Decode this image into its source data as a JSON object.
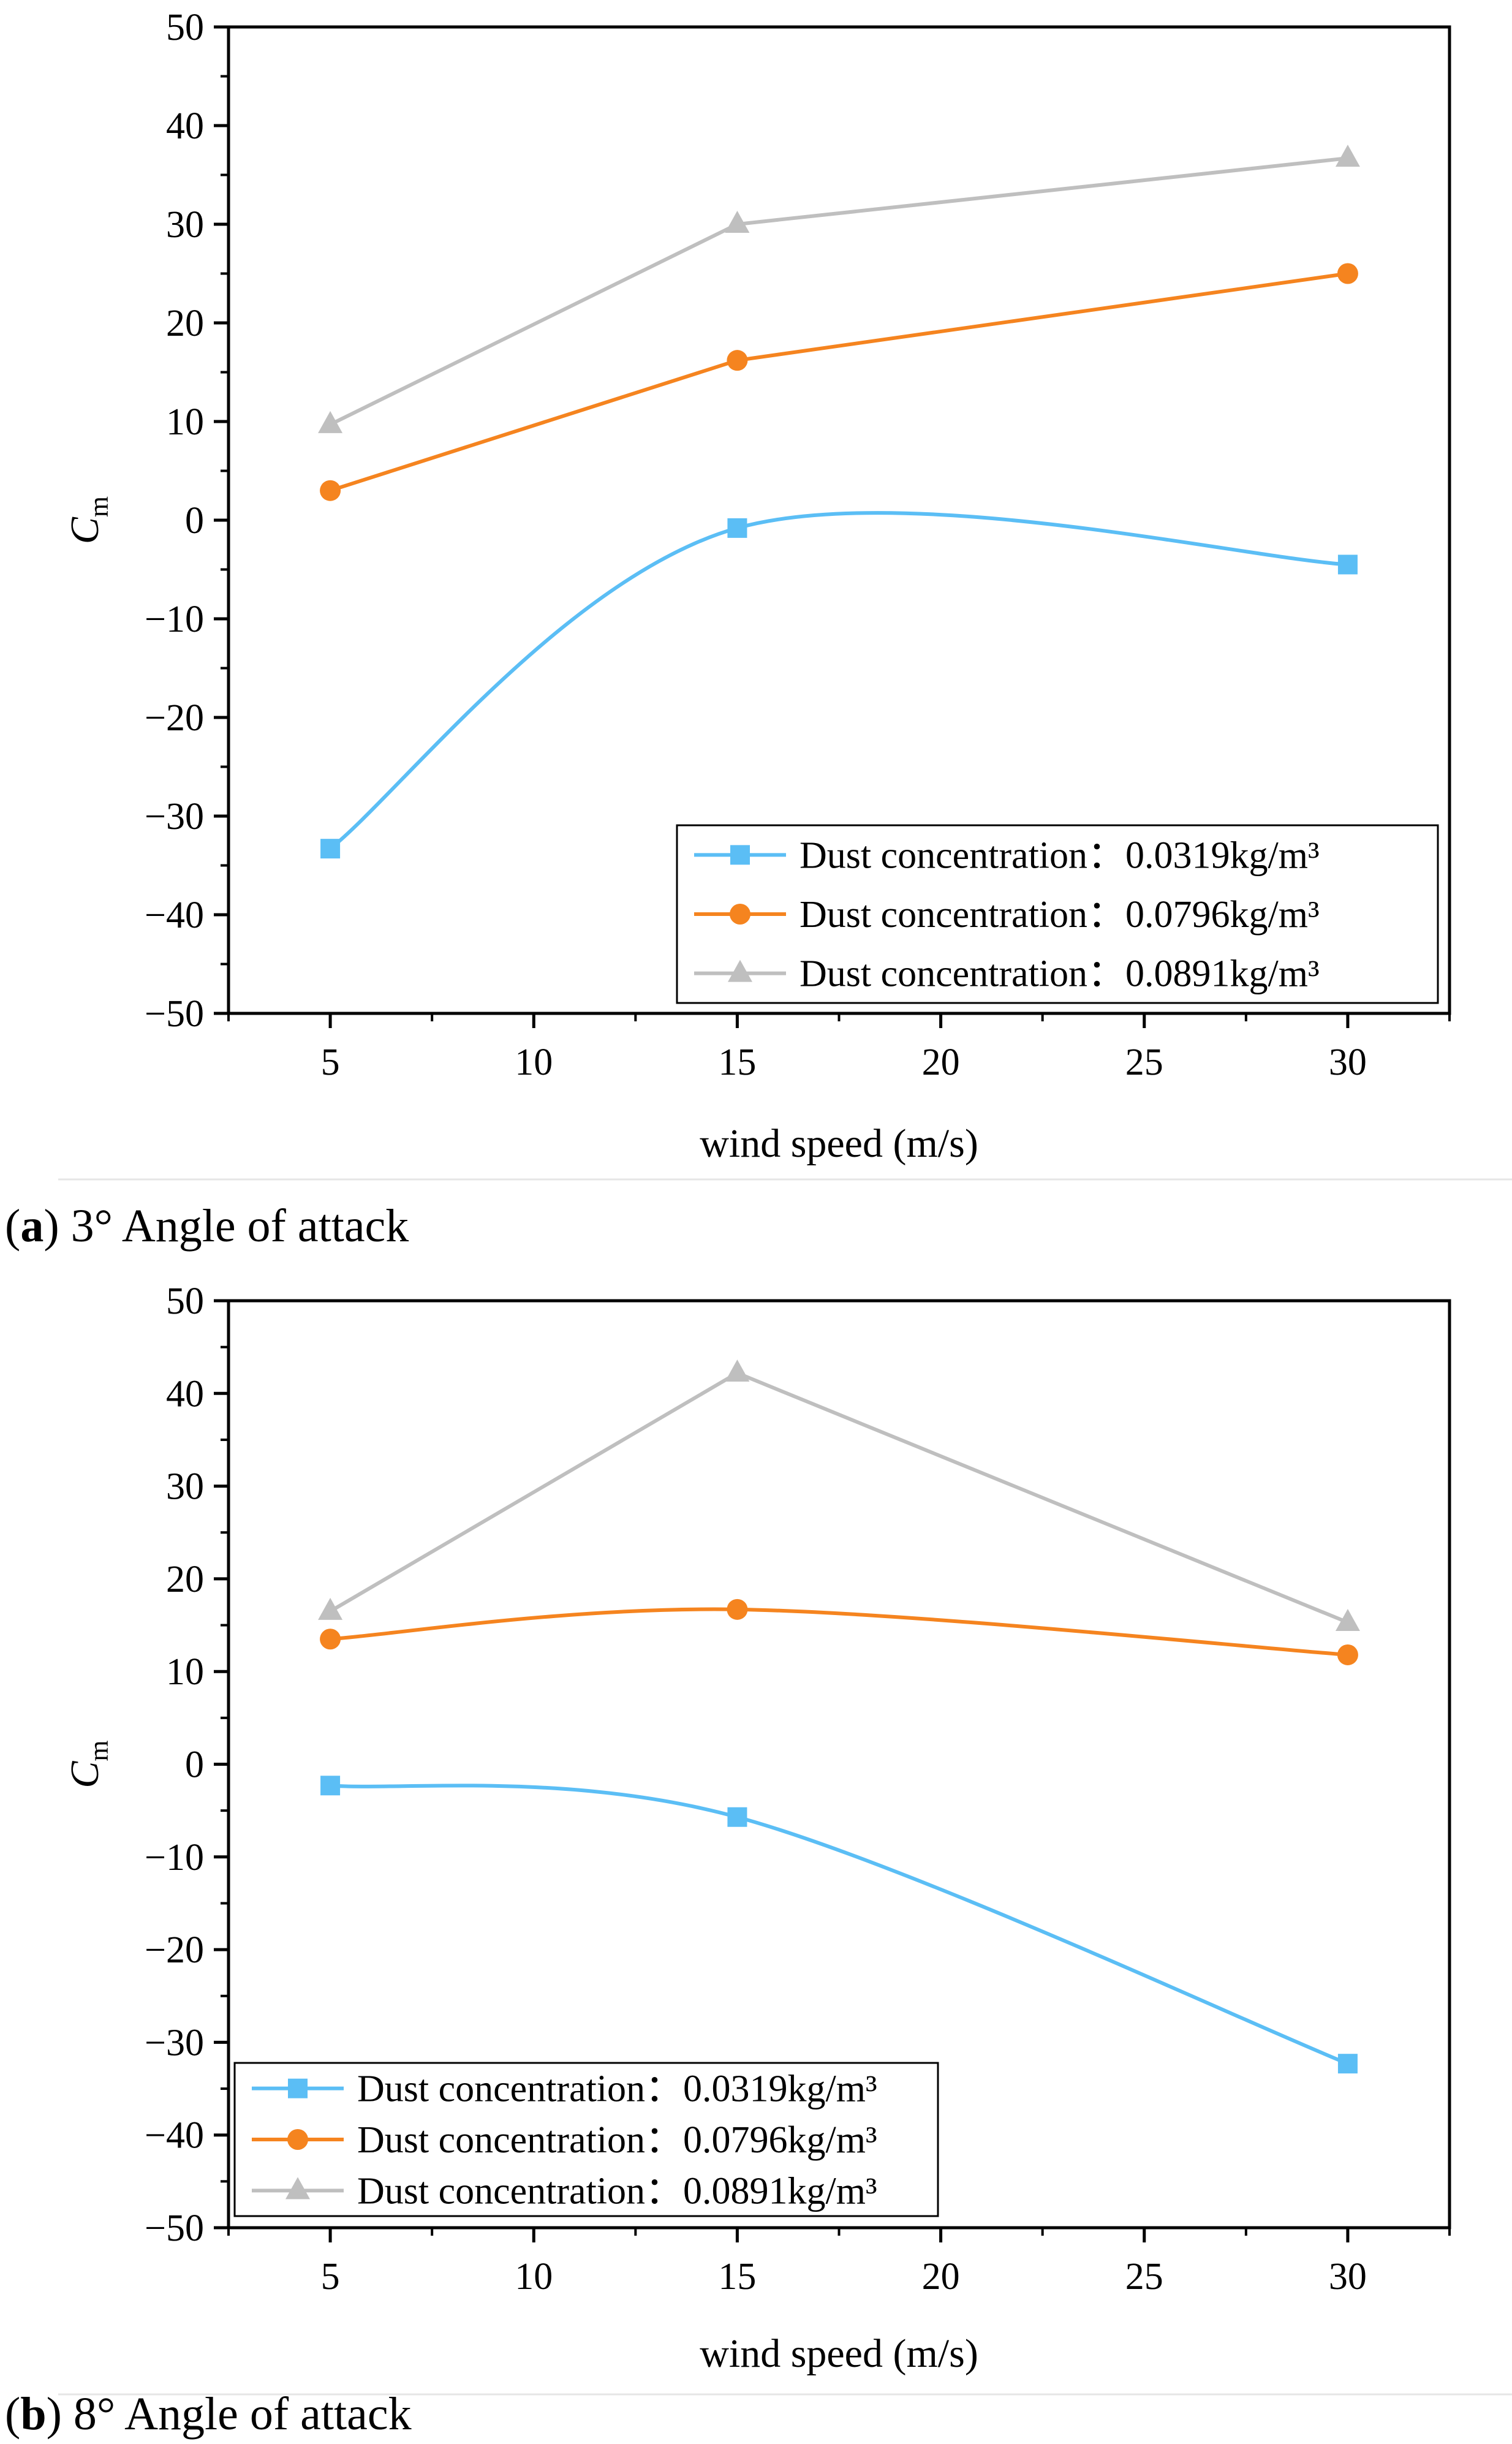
{
  "chart_data": [
    {
      "type": "line",
      "panel_letter": "a",
      "caption": "3° Angle of attack",
      "x": [
        5,
        15,
        30
      ],
      "xlabel": "wind speed (m/s)",
      "ylabel_main": "C",
      "ylabel_sub": "m",
      "xlim": [
        2.5,
        32.5
      ],
      "ylim": [
        -50,
        50
      ],
      "xticks": [
        5,
        10,
        15,
        20,
        25,
        30
      ],
      "yticks": [
        50,
        40,
        30,
        20,
        10,
        0,
        -10,
        -20,
        -30,
        -40,
        -50
      ],
      "ytick_labels": [
        "50",
        "40",
        "30",
        "20",
        "10",
        "0",
        "−10",
        "−20",
        "−30",
        "−40",
        "−50"
      ],
      "legend_position": "bottom-right",
      "series": [
        {
          "name": "Dust concentration：0.0319kg/m³",
          "label": "Dust concentration：",
          "value_label": "0.0319kg/m³",
          "values": [
            -33.3,
            -0.8,
            -4.5
          ],
          "color": "#5bbef5",
          "marker": "square",
          "smooth": true
        },
        {
          "name": "Dust concentration：0.0796kg/m³",
          "label": "Dust concentration：",
          "value_label": "0.0796kg/m³",
          "values": [
            3.0,
            16.2,
            25.0
          ],
          "color": "#f5841f",
          "marker": "circle",
          "smooth": false
        },
        {
          "name": "Dust concentration：0.0891kg/m³",
          "label": "Dust concentration：",
          "value_label": "0.0891kg/m³",
          "values": [
            9.7,
            30.0,
            36.7
          ],
          "color": "#bfbfbf",
          "marker": "triangle",
          "smooth": false
        }
      ]
    },
    {
      "type": "line",
      "panel_letter": "b",
      "caption": "8° Angle of attack",
      "x": [
        5,
        15,
        30
      ],
      "xlabel": "wind speed (m/s)",
      "ylabel_main": "C",
      "ylabel_sub": "m",
      "xlim": [
        2.5,
        32.5
      ],
      "ylim": [
        -50,
        50
      ],
      "xticks": [
        5,
        10,
        15,
        20,
        25,
        30
      ],
      "yticks": [
        50,
        40,
        30,
        20,
        10,
        0,
        -10,
        -20,
        -30,
        -40,
        -50
      ],
      "ytick_labels": [
        "50",
        "40",
        "30",
        "20",
        "10",
        "0",
        "−10",
        "−20",
        "−30",
        "−40",
        "−50"
      ],
      "legend_position": "bottom-left",
      "series": [
        {
          "name": "Dust concentration：0.0319kg/m³",
          "label": "Dust concentration：",
          "value_label": "0.0319kg/m³",
          "values": [
            -2.3,
            -5.7,
            -32.3
          ],
          "color": "#5bbef5",
          "marker": "square",
          "smooth": true
        },
        {
          "name": "Dust concentration：0.0796kg/m³",
          "label": "Dust concentration：",
          "value_label": "0.0796kg/m³",
          "values": [
            13.5,
            16.7,
            11.8
          ],
          "color": "#f5841f",
          "marker": "circle",
          "smooth": true
        },
        {
          "name": "Dust concentration：0.0891kg/m³",
          "label": "Dust concentration：",
          "value_label": "0.0891kg/m³",
          "values": [
            16.5,
            42.2,
            15.3
          ],
          "color": "#bfbfbf",
          "marker": "triangle",
          "smooth": false
        }
      ]
    }
  ]
}
